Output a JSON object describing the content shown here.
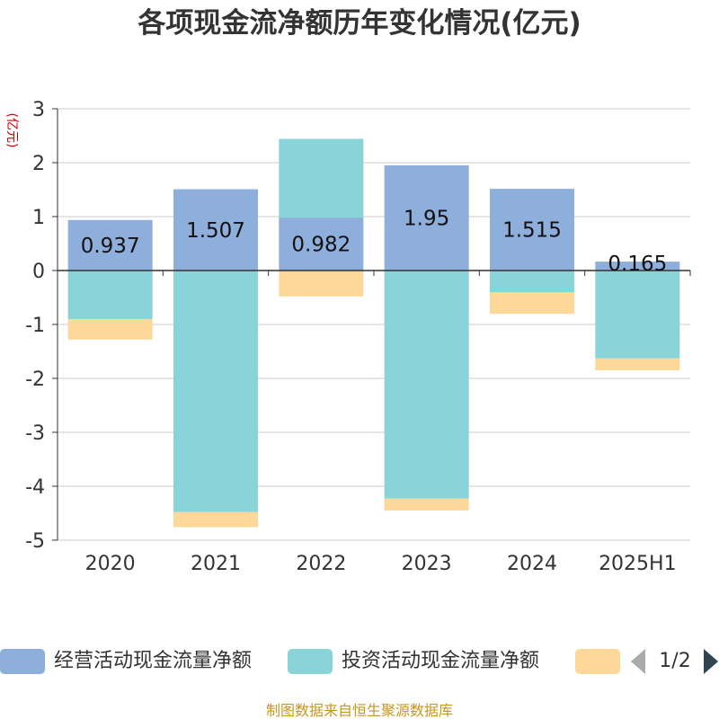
{
  "chart_data": {
    "type": "bar",
    "stacked": true,
    "title": "各项现金流净额历年变化情况(亿元)",
    "ylabel": "(亿元)",
    "xlabel": "",
    "categories": [
      "2020",
      "2021",
      "2022",
      "2023",
      "2024",
      "2025H1"
    ],
    "ylim": [
      -5,
      3
    ],
    "yticks": [
      3,
      2,
      1,
      0,
      -1,
      -2,
      -3,
      -4,
      -5
    ],
    "grid": true,
    "legend_position": "bottom",
    "series": [
      {
        "name": "经营活动现金流量净额",
        "color": "#8eaedb",
        "values": [
          0.937,
          1.507,
          0.982,
          1.95,
          1.515,
          0.165
        ],
        "labels": [
          "0.937",
          "1.507",
          "0.982",
          "1.95",
          "1.515",
          "0.165"
        ]
      },
      {
        "name": "投资活动现金流量净额",
        "color": "#88d4d8",
        "values": [
          -0.9,
          -4.48,
          1.46,
          -4.23,
          -0.4,
          -1.63
        ]
      },
      {
        "color": "#fdd898",
        "values": [
          -0.38,
          -0.28,
          -0.48,
          -0.22,
          -0.4,
          -0.22
        ]
      }
    ],
    "pager": "1/2",
    "source": "制图数据来自恒生聚源数据库"
  }
}
